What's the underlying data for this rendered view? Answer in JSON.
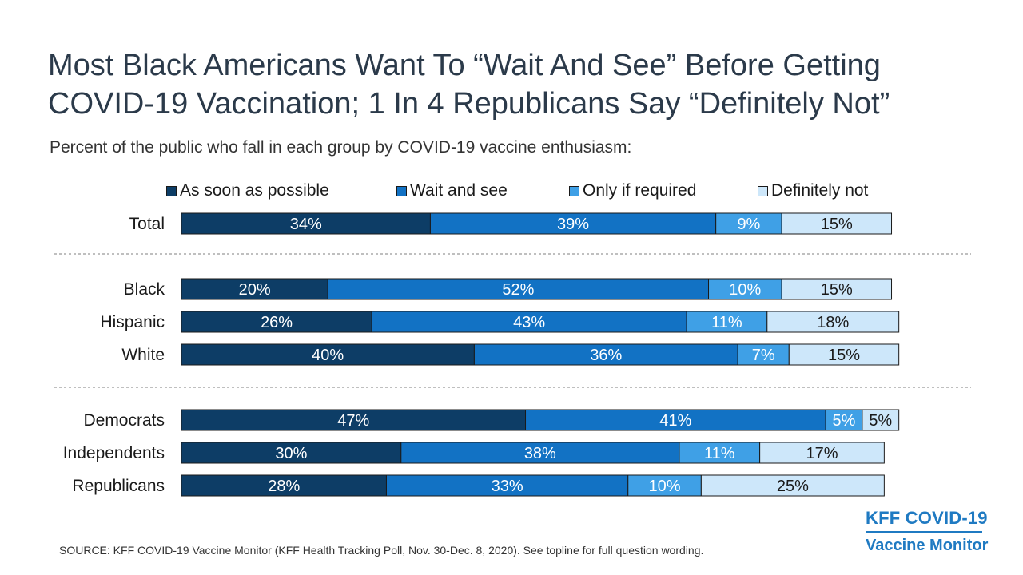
{
  "title": "Most Black Americans Want To “Wait And See” Before Getting COVID-19 Vaccination; 1 In 4 Republicans Say “Definitely Not”",
  "subtitle": "Percent of the public who fall in each group by COVID-19 vaccine enthusiasm:",
  "source": "SOURCE: KFF COVID-19 Vaccine Monitor (KFF Health Tracking Poll, Nov. 30-Dec. 8, 2020). See topline for full question wording.",
  "logo": {
    "line1": "KFF COVID-19",
    "line2": "Vaccine Monitor"
  },
  "colors": {
    "as_soon_as_possible": "#0d3d66",
    "wait_and_see": "#1272c4",
    "only_if_required": "#3fa0e6",
    "definitely_not": "#cde7fa",
    "divider": "#7f7f7f"
  },
  "chart_data": {
    "type": "bar",
    "orientation": "horizontal",
    "stacked": true,
    "categories": [
      "Total",
      "Black",
      "Hispanic",
      "White",
      "Democrats",
      "Independents",
      "Republicans"
    ],
    "groups": [
      [
        "Total"
      ],
      [
        "Black",
        "Hispanic",
        "White"
      ],
      [
        "Democrats",
        "Independents",
        "Republicans"
      ]
    ],
    "series": [
      {
        "name": "As soon as possible",
        "values": [
          34,
          20,
          26,
          40,
          47,
          30,
          28
        ]
      },
      {
        "name": "Wait and see",
        "values": [
          39,
          52,
          43,
          36,
          41,
          38,
          33
        ]
      },
      {
        "name": "Only if required",
        "values": [
          9,
          10,
          11,
          7,
          5,
          11,
          10
        ]
      },
      {
        "name": "Definitely not",
        "values": [
          15,
          15,
          18,
          15,
          5,
          17,
          25
        ]
      }
    ],
    "value_suffix": "%",
    "legend_position": "top",
    "grid": false
  }
}
